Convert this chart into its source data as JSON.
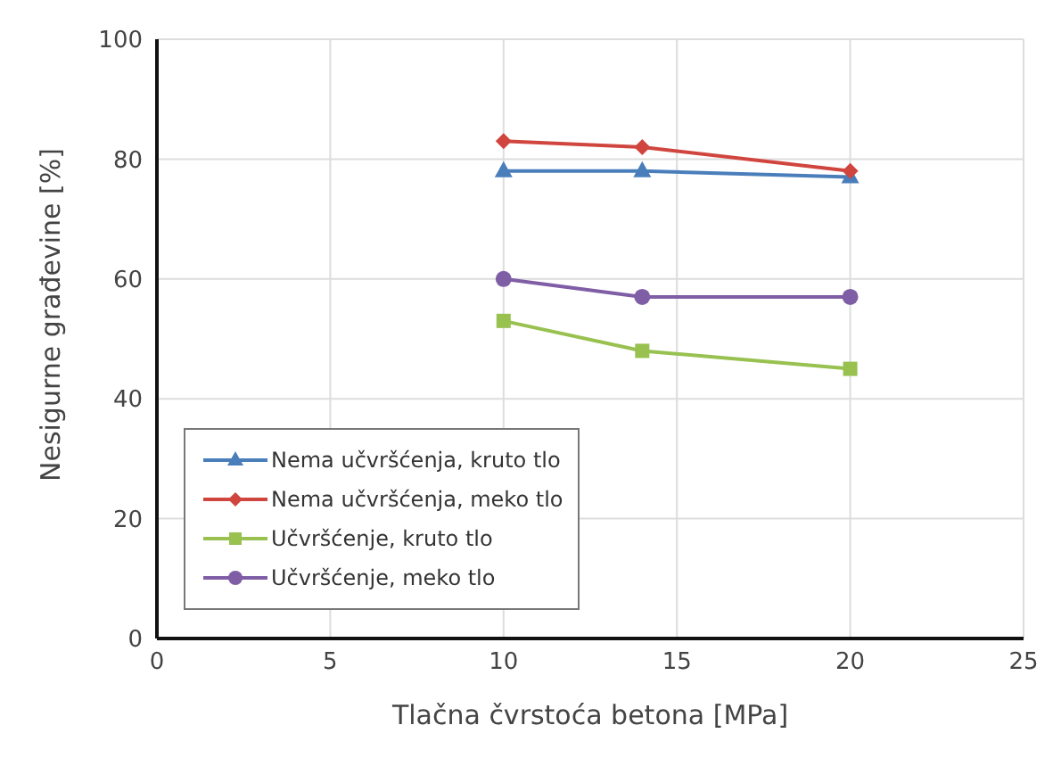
{
  "chart_data": {
    "type": "line",
    "xlabel": "Tlačna čvrstoća betona [MPa]",
    "ylabel": "Nesigurne građevine  [%]",
    "x": [
      10,
      14,
      20
    ],
    "series": [
      {
        "name": "Nema učvršćenja, kruto tlo",
        "color": "#4a7ebb",
        "marker": "triangle",
        "values": [
          78,
          78,
          77
        ]
      },
      {
        "name": "Nema učvršćenja, meko tlo",
        "color": "#d0453e",
        "marker": "diamond",
        "values": [
          83,
          82,
          78
        ]
      },
      {
        "name": "Učvršćenje, kruto tlo",
        "color": "#98c150",
        "marker": "square",
        "values": [
          53,
          48,
          45
        ]
      },
      {
        "name": "Učvršćenje, meko tlo",
        "color": "#7f5ea6",
        "marker": "circle",
        "values": [
          60,
          57,
          57
        ]
      }
    ],
    "xlim": [
      0,
      25
    ],
    "xticks": [
      0,
      5,
      10,
      15,
      20,
      25
    ],
    "ylim": [
      0,
      100
    ],
    "yticks": [
      0,
      20,
      40,
      60,
      80,
      100
    ],
    "grid": true,
    "legend": "bottom left",
    "line_style": "solid"
  }
}
